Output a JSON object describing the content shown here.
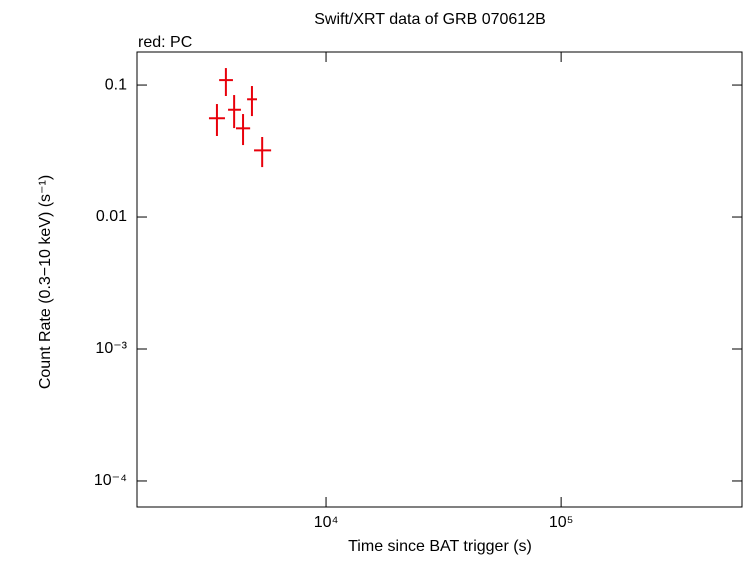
{
  "chart_data": {
    "type": "scatter",
    "title": "Swift/XRT data of GRB 070612B",
    "annotation": "red: PC",
    "x_label": "Time since BAT trigger (s)",
    "y_label": "Count Rate (0.3−10 keV) (s⁻¹)",
    "x_log": true,
    "y_log": true,
    "xlim": [
      1570,
      588000
    ],
    "ylim": [
      6.35e-05,
      0.178
    ],
    "xticks": [
      {
        "value": 10000,
        "label": "10⁴"
      },
      {
        "value": 100000,
        "label": "10⁵"
      }
    ],
    "yticks": [
      {
        "value": 0.0001,
        "label": "10⁻⁴"
      },
      {
        "value": 0.001,
        "label": "10⁻³"
      },
      0.01,
      0.1
    ],
    "series": [
      {
        "color": "#e8000b",
        "x": [
          3435,
          3750,
          4065,
          4436,
          4840,
          5350
        ],
        "x_lo": [
          3177,
          3510,
          3830,
          4140,
          4615,
          4940
        ],
        "x_hi": [
          3716,
          4018,
          4345,
          4755,
          5085,
          5840
        ],
        "values": [
          0.056,
          0.109,
          0.065,
          0.047,
          0.078,
          0.032
        ],
        "y_lo": [
          0.0411,
          0.0826,
          0.0472,
          0.0351,
          0.0582,
          0.0239
        ],
        "y_hi": [
          0.0718,
          0.1345,
          0.084,
          0.0603,
          0.0983,
          0.0404
        ]
      }
    ]
  }
}
